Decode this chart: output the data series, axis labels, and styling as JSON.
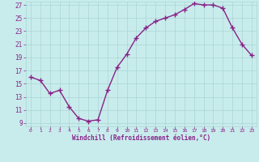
{
  "x": [
    0,
    1,
    2,
    3,
    4,
    5,
    6,
    7,
    8,
    9,
    10,
    11,
    12,
    13,
    14,
    15,
    16,
    17,
    18,
    19,
    20,
    21,
    22,
    23
  ],
  "y": [
    16,
    15.5,
    13.5,
    14,
    11.5,
    9.7,
    9.3,
    9.5,
    14,
    17.5,
    19.5,
    22,
    23.5,
    24.5,
    25,
    25.5,
    26.3,
    27.2,
    27,
    27,
    26.5,
    23.5,
    21,
    19.3
  ],
  "line_color": "#882288",
  "marker_color": "#882288",
  "bg_color": "#c8ecec",
  "grid_color": "#aad4d4",
  "tick_color": "#882288",
  "label_color": "#882288",
  "xlabel": "Windchill (Refroidissement éolien,°C)",
  "ylim": [
    9,
    27
  ],
  "xlim": [
    0,
    23
  ],
  "yticks": [
    9,
    11,
    13,
    15,
    17,
    19,
    21,
    23,
    25,
    27
  ],
  "xticks": [
    0,
    1,
    2,
    3,
    4,
    5,
    6,
    7,
    8,
    9,
    10,
    11,
    12,
    13,
    14,
    15,
    16,
    17,
    18,
    19,
    20,
    21,
    22,
    23
  ],
  "marker_size": 4,
  "line_width": 1
}
